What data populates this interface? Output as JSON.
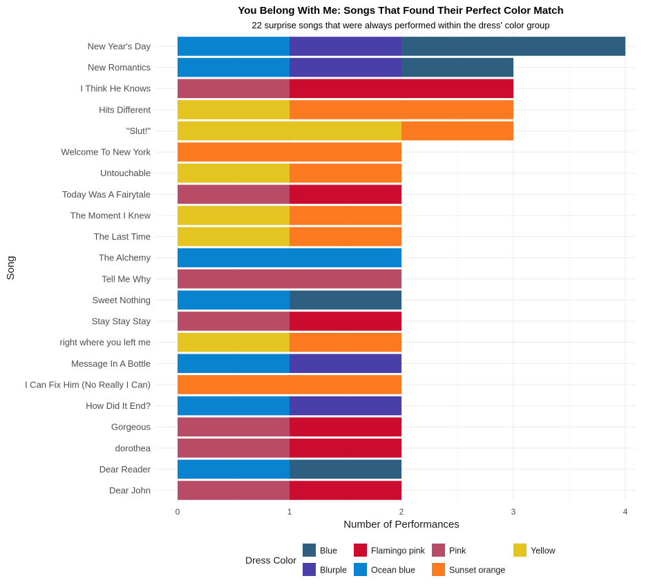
{
  "chart_data": {
    "type": "bar",
    "orientation": "horizontal",
    "stacked": true,
    "title": "You Belong With Me: Songs That Found Their Perfect Color Match",
    "subtitle": "22 surprise songs that were always performed within the dress' color group",
    "xlabel": "Number of Performances",
    "ylabel": "Song",
    "xlim": [
      0,
      4
    ],
    "x_ticks": [
      "0",
      "1",
      "2",
      "3",
      "4"
    ],
    "grid": true,
    "legend_position": "bottom",
    "legend_title": "Dress Color",
    "legend": [
      {
        "name": "Blue",
        "color": "#2e5f80"
      },
      {
        "name": "Blurple",
        "color": "#4a3ea8"
      },
      {
        "name": "Flamingo pink",
        "color": "#cc0c2e"
      },
      {
        "name": "Ocean blue",
        "color": "#0983d0"
      },
      {
        "name": "Pink",
        "color": "#b84c66"
      },
      {
        "name": "Sunset orange",
        "color": "#fd7a20"
      },
      {
        "name": "Yellow",
        "color": "#e3c420"
      }
    ],
    "categories": [
      "New Year's Day",
      "New Romantics",
      "I Think He Knows",
      "Hits Different",
      "\"Slut!\"",
      "Welcome To New York",
      "Untouchable",
      "Today Was A Fairytale",
      "The Moment I Knew",
      "The Last Time",
      "The Alchemy",
      "Tell Me Why",
      "Sweet Nothing",
      "Stay Stay Stay",
      "right where you left me",
      "Message In A Bottle",
      "I Can Fix Him (No Really I Can)",
      "How Did It End?",
      "Gorgeous",
      "dorothea",
      "Dear Reader",
      "Dear John"
    ],
    "series": [
      {
        "name": "Ocean blue",
        "color": "#0983d0",
        "values": [
          1,
          1,
          0,
          0,
          0,
          0,
          0,
          0,
          0,
          0,
          2,
          0,
          1,
          0,
          0,
          1,
          0,
          1,
          0,
          0,
          1,
          0
        ]
      },
      {
        "name": "Blurple",
        "color": "#4a3ea8",
        "values": [
          1,
          1,
          0,
          0,
          0,
          0,
          0,
          0,
          0,
          0,
          0,
          0,
          0,
          0,
          0,
          1,
          0,
          1,
          0,
          0,
          0,
          0
        ]
      },
      {
        "name": "Blue",
        "color": "#2e5f80",
        "values": [
          2,
          1,
          0,
          0,
          0,
          0,
          0,
          0,
          0,
          0,
          0,
          0,
          1,
          0,
          0,
          0,
          0,
          0,
          0,
          0,
          1,
          0
        ]
      },
      {
        "name": "Pink",
        "color": "#b84c66",
        "values": [
          0,
          0,
          1,
          0,
          0,
          0,
          0,
          1,
          0,
          0,
          0,
          2,
          0,
          1,
          0,
          0,
          0,
          0,
          1,
          1,
          0,
          1
        ]
      },
      {
        "name": "Flamingo pink",
        "color": "#cc0c2e",
        "values": [
          0,
          0,
          2,
          0,
          0,
          0,
          0,
          1,
          0,
          0,
          0,
          0,
          0,
          1,
          0,
          0,
          0,
          0,
          1,
          1,
          0,
          1
        ]
      },
      {
        "name": "Yellow",
        "color": "#e3c420",
        "values": [
          0,
          0,
          0,
          1,
          2,
          0,
          1,
          0,
          1,
          1,
          0,
          0,
          0,
          0,
          1,
          0,
          0,
          0,
          0,
          0,
          0,
          0
        ]
      },
      {
        "name": "Sunset orange",
        "color": "#fd7a20",
        "values": [
          0,
          0,
          0,
          2,
          1,
          2,
          1,
          0,
          1,
          1,
          0,
          0,
          0,
          0,
          1,
          0,
          2,
          0,
          0,
          0,
          0,
          0
        ]
      }
    ]
  }
}
